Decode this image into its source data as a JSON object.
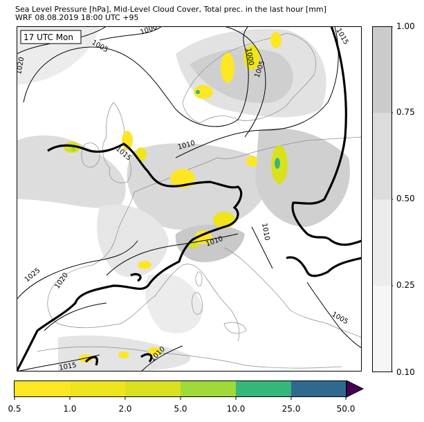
{
  "header": {
    "line1": "Sea Level Pressure [hPa], Mid-Level Cloud Cover, Total prec. in the last hour [mm]",
    "line2": "WRF 08.08.2019 18:00 UTC +95"
  },
  "map": {
    "time_label": "17 UTC Mon",
    "isobar_labels": [
      "1000",
      "1005",
      "1015",
      "1020",
      "1000",
      "1005",
      "1015",
      "1010",
      "1010",
      "1025",
      "1020",
      "1010",
      "1010",
      "1005",
      "1015"
    ],
    "colors": {
      "land_bg": "#ffffff",
      "cloud_low": "#eeeeee",
      "cloud_mid": "#dddddd",
      "cloud_high": "#cccccc",
      "coast": "#8a8a8a",
      "isobar": "#000000"
    }
  },
  "cloud_colorbar": {
    "ticks": [
      "1.00",
      "0.75",
      "0.50",
      "0.25",
      "0.10"
    ],
    "colors": [
      "#cbcbcb",
      "#dcdcdc",
      "#ececec",
      "#f6f6f6"
    ]
  },
  "precip_colorbar": {
    "ticks": [
      "0.5",
      "1.0",
      "2.0",
      "5.0",
      "10.0",
      "25.0",
      "50.0"
    ],
    "colors": [
      "#fde725",
      "#eee51c",
      "#d9e11f",
      "#a0da39",
      "#35b779",
      "#2f6a8e",
      "#440154"
    ]
  }
}
